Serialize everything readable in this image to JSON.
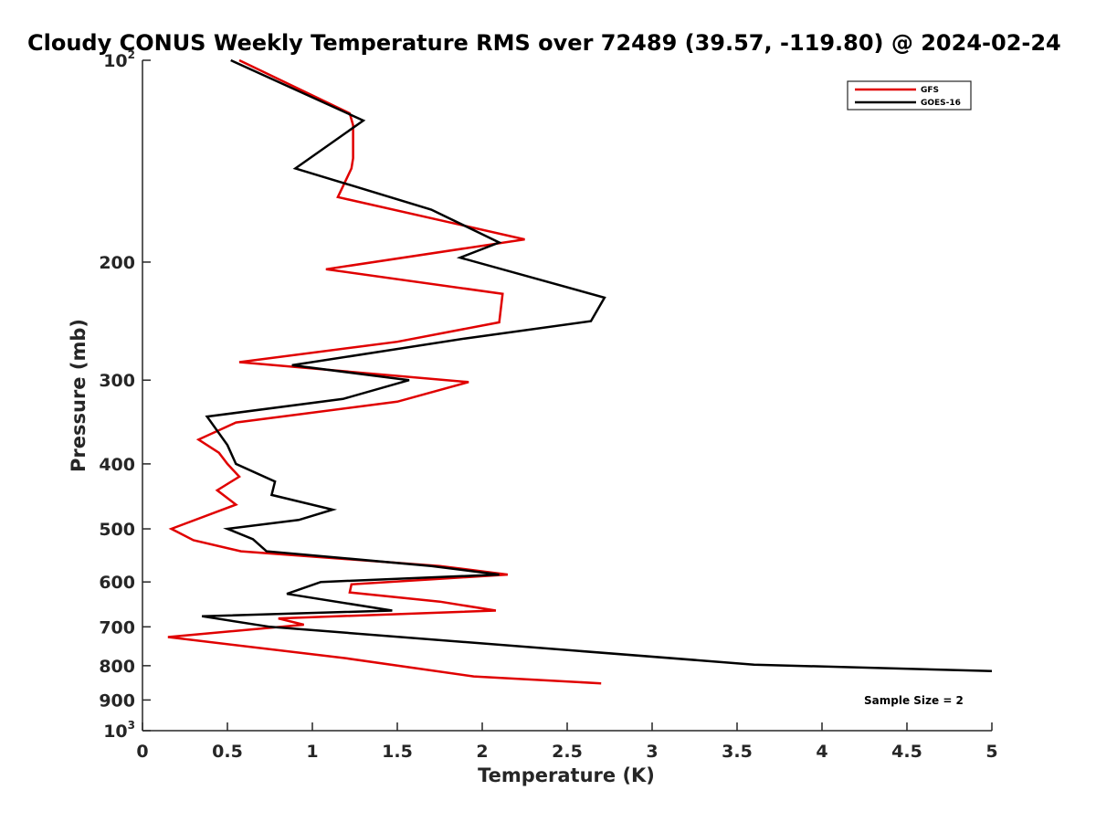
{
  "chart_data": {
    "type": "line",
    "title": "Cloudy CONUS Weekly Temperature RMS over 72489 (39.57, -119.80) @ 2024-02-24",
    "xlabel": "Temperature (K)",
    "ylabel": "Pressure (mb)",
    "xlim": [
      0,
      5
    ],
    "ylim": [
      100,
      1000
    ],
    "y_scale": "log",
    "y_reversed": true,
    "xticks": [
      "0",
      "0.5",
      "1",
      "1.5",
      "2",
      "2.5",
      "3",
      "3.5",
      "4",
      "4.5",
      "5"
    ],
    "yticks": [
      {
        "value": 100,
        "base": "10",
        "exp": "2"
      },
      {
        "value": 200,
        "base": "200",
        "exp": ""
      },
      {
        "value": 300,
        "base": "300",
        "exp": ""
      },
      {
        "value": 400,
        "base": "400",
        "exp": ""
      },
      {
        "value": 500,
        "base": "500",
        "exp": ""
      },
      {
        "value": 600,
        "base": "600",
        "exp": ""
      },
      {
        "value": 700,
        "base": "700",
        "exp": ""
      },
      {
        "value": 800,
        "base": "800",
        "exp": ""
      },
      {
        "value": 900,
        "base": "900",
        "exp": ""
      },
      {
        "value": 1000,
        "base": "10",
        "exp": "3"
      }
    ],
    "grid": false,
    "legend_position": "top-right",
    "series": [
      {
        "name": "GFS",
        "color": "#e00000",
        "points": [
          [
            0.57,
            100
          ],
          [
            1.22,
            120
          ],
          [
            1.24,
            125
          ],
          [
            1.24,
            140
          ],
          [
            1.23,
            145
          ],
          [
            1.15,
            160
          ],
          [
            2.25,
            185
          ],
          [
            1.08,
            205
          ],
          [
            2.12,
            223
          ],
          [
            2.1,
            246
          ],
          [
            1.5,
            263
          ],
          [
            0.57,
            282
          ],
          [
            1.92,
            302
          ],
          [
            1.5,
            323
          ],
          [
            0.55,
            347
          ],
          [
            0.33,
            368
          ],
          [
            0.45,
            385
          ],
          [
            0.5,
            400
          ],
          [
            0.57,
            418
          ],
          [
            0.44,
            438
          ],
          [
            0.55,
            460
          ],
          [
            0.17,
            500
          ],
          [
            0.3,
            520
          ],
          [
            0.58,
            540
          ],
          [
            1.75,
            568
          ],
          [
            2.15,
            585
          ],
          [
            1.23,
            605
          ],
          [
            1.22,
            622
          ],
          [
            1.75,
            642
          ],
          [
            2.08,
            662
          ],
          [
            0.8,
            680
          ],
          [
            0.95,
            695
          ],
          [
            0.15,
            725
          ],
          [
            1.2,
            780
          ],
          [
            1.95,
            830
          ],
          [
            2.7,
            850
          ]
        ]
      },
      {
        "name": "GOES-16",
        "color": "#000000",
        "points": [
          [
            0.52,
            100
          ],
          [
            1.3,
            123
          ],
          [
            0.9,
            145
          ],
          [
            1.7,
            167
          ],
          [
            2.1,
            187
          ],
          [
            1.87,
            197
          ],
          [
            2.72,
            226
          ],
          [
            2.64,
            245
          ],
          [
            1.9,
            260
          ],
          [
            0.88,
            285
          ],
          [
            1.57,
            300
          ],
          [
            1.18,
            320
          ],
          [
            0.38,
            340
          ],
          [
            0.5,
            375
          ],
          [
            0.55,
            400
          ],
          [
            0.78,
            425
          ],
          [
            0.76,
            445
          ],
          [
            1.12,
            468
          ],
          [
            0.92,
            485
          ],
          [
            0.5,
            500
          ],
          [
            0.65,
            518
          ],
          [
            0.73,
            540
          ],
          [
            1.7,
            568
          ],
          [
            2.1,
            585
          ],
          [
            1.05,
            600
          ],
          [
            0.85,
            625
          ],
          [
            1.47,
            662
          ],
          [
            0.35,
            675
          ],
          [
            0.75,
            700
          ],
          [
            3.6,
            797
          ],
          [
            5.0,
            815
          ]
        ]
      }
    ],
    "annotations": [
      "Sample Size = 2"
    ]
  }
}
